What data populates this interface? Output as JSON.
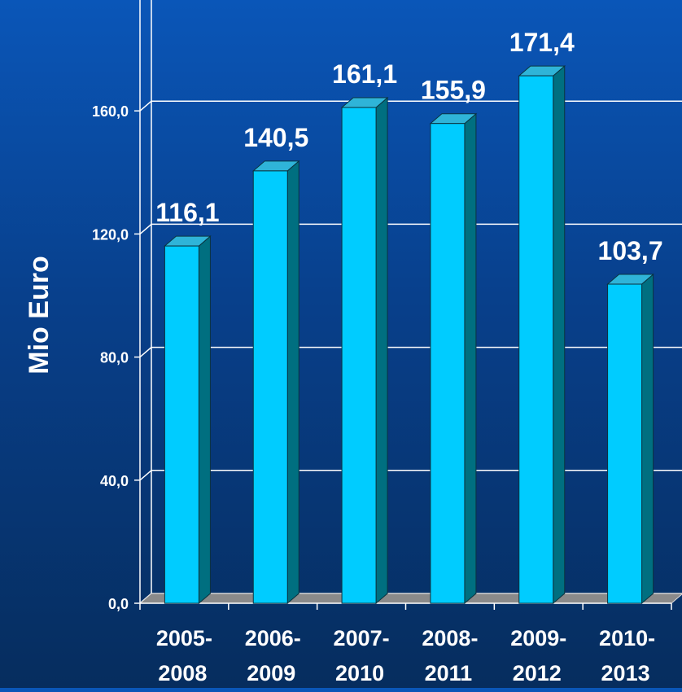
{
  "chart_data": {
    "type": "bar",
    "title": "",
    "xlabel": "",
    "ylabel": "Mio Euro",
    "ylim": [
      0,
      200
    ],
    "yticks": [
      "0,0",
      "40,0",
      "80,0",
      "120,0",
      "160,0"
    ],
    "ytick_values": [
      0,
      40,
      80,
      120,
      160
    ],
    "grid": true,
    "categories": [
      [
        "2005-",
        "2008"
      ],
      [
        "2006-",
        "2009"
      ],
      [
        "2007-",
        "2010"
      ],
      [
        "2008-",
        "2011"
      ],
      [
        "2009-",
        "2012"
      ],
      [
        "2010-",
        "2013"
      ]
    ],
    "values": [
      116.1,
      140.5,
      161.1,
      155.9,
      171.4,
      103.7
    ],
    "value_labels": [
      "116,1",
      "140,5",
      "161,1",
      "155,9",
      "171,4",
      "103,7"
    ]
  },
  "colors": {
    "bar_front": "#00ccff",
    "bar_top": "#2fb4d8",
    "bar_side": "#006f80",
    "floor": "#8a8a8a",
    "grid": "#ffffff"
  }
}
